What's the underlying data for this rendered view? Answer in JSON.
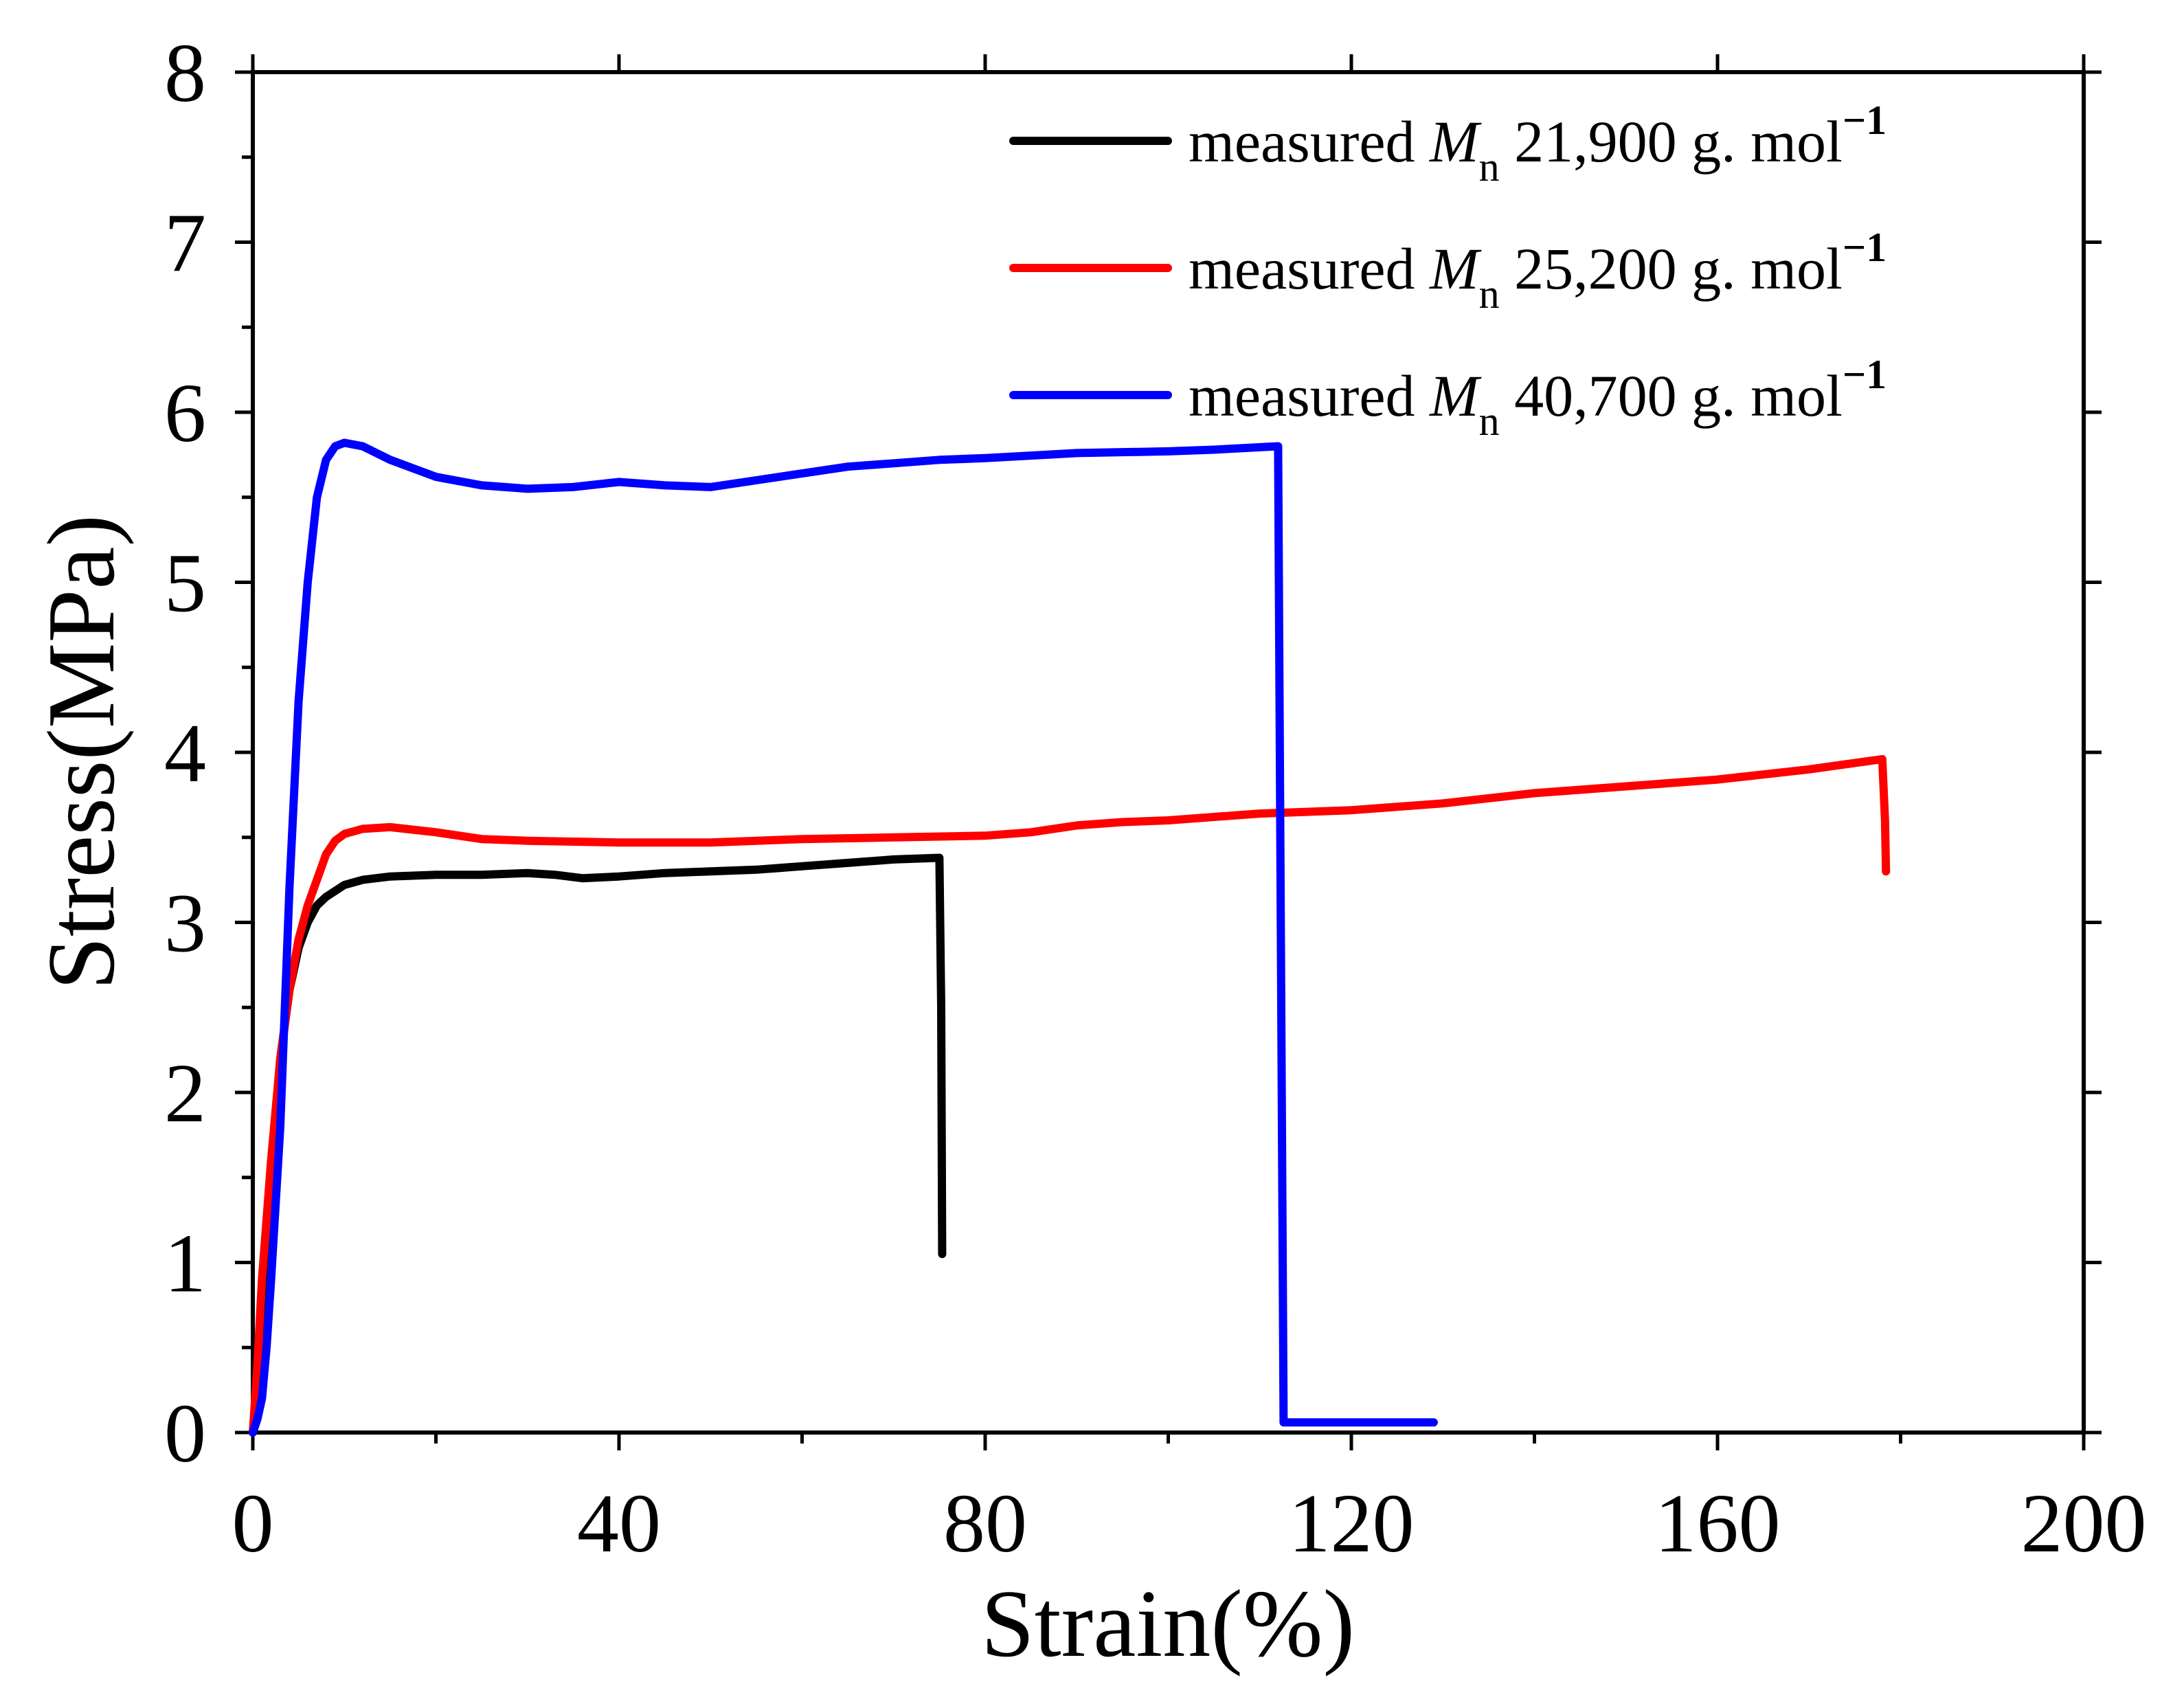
{
  "chart_data": {
    "type": "line",
    "title": "",
    "xlabel": "Strain(%)",
    "ylabel": "Stress(MPa)",
    "xlim": [
      0,
      200
    ],
    "ylim": [
      0,
      8
    ],
    "xticks": [
      0,
      40,
      80,
      120,
      160,
      200
    ],
    "yticks": [
      0,
      1,
      2,
      3,
      4,
      5,
      6,
      7,
      8
    ],
    "xtick_labels": [
      "0",
      "40",
      "80",
      "120",
      "160",
      "200"
    ],
    "ytick_labels": [
      "0",
      "1",
      "2",
      "3",
      "4",
      "5",
      "6",
      "7",
      "8"
    ],
    "grid": false,
    "legend_position": "top-right",
    "series": [
      {
        "name": "measured Mn 21,900 g. mol-1",
        "legend_prefix": "measured",
        "legend_symbol": "M",
        "legend_subscript": "n",
        "legend_value": "21,900 g. mol",
        "legend_superscript": "−1",
        "color": "#000000",
        "points": [
          [
            0,
            0
          ],
          [
            0.5,
            0.3
          ],
          [
            1,
            0.8
          ],
          [
            2,
            1.5
          ],
          [
            3,
            2.2
          ],
          [
            4,
            2.6
          ],
          [
            5,
            2.85
          ],
          [
            6,
            3.0
          ],
          [
            7,
            3.1
          ],
          [
            8,
            3.15
          ],
          [
            10,
            3.22
          ],
          [
            12,
            3.25
          ],
          [
            15,
            3.27
          ],
          [
            20,
            3.28
          ],
          [
            25,
            3.28
          ],
          [
            30,
            3.29
          ],
          [
            33,
            3.28
          ],
          [
            36,
            3.26
          ],
          [
            40,
            3.27
          ],
          [
            45,
            3.29
          ],
          [
            50,
            3.3
          ],
          [
            55,
            3.31
          ],
          [
            60,
            3.33
          ],
          [
            65,
            3.35
          ],
          [
            70,
            3.37
          ],
          [
            75,
            3.38
          ],
          [
            75.2,
            2.5
          ],
          [
            75.3,
            1.05
          ]
        ]
      },
      {
        "name": "measured Mn 25,200 g. mol-1",
        "legend_prefix": "measured",
        "legend_symbol": "M",
        "legend_subscript": "n",
        "legend_value": "25,200 g. mol",
        "legend_superscript": "−1",
        "color": "#ff0000",
        "points": [
          [
            0,
            0
          ],
          [
            0.5,
            0.4
          ],
          [
            1,
            0.9
          ],
          [
            2,
            1.6
          ],
          [
            3,
            2.2
          ],
          [
            4,
            2.6
          ],
          [
            5,
            2.9
          ],
          [
            6,
            3.1
          ],
          [
            7,
            3.25
          ],
          [
            8,
            3.4
          ],
          [
            9,
            3.48
          ],
          [
            10,
            3.52
          ],
          [
            12,
            3.55
          ],
          [
            15,
            3.56
          ],
          [
            20,
            3.53
          ],
          [
            25,
            3.49
          ],
          [
            30,
            3.48
          ],
          [
            40,
            3.47
          ],
          [
            50,
            3.47
          ],
          [
            60,
            3.49
          ],
          [
            70,
            3.5
          ],
          [
            80,
            3.51
          ],
          [
            85,
            3.53
          ],
          [
            90,
            3.57
          ],
          [
            95,
            3.59
          ],
          [
            100,
            3.6
          ],
          [
            110,
            3.64
          ],
          [
            120,
            3.66
          ],
          [
            130,
            3.7
          ],
          [
            140,
            3.76
          ],
          [
            150,
            3.8
          ],
          [
            160,
            3.84
          ],
          [
            170,
            3.9
          ],
          [
            178,
            3.96
          ],
          [
            178.3,
            3.6
          ],
          [
            178.4,
            3.3
          ]
        ]
      },
      {
        "name": "measured Mn 40,700 g. mol-1",
        "legend_prefix": "measured",
        "legend_symbol": "M",
        "legend_subscript": "n",
        "legend_value": "40,700 g. mol",
        "legend_superscript": "−1",
        "color": "#0000ff",
        "points": [
          [
            0,
            0
          ],
          [
            0.5,
            0.08
          ],
          [
            1,
            0.2
          ],
          [
            1.5,
            0.5
          ],
          [
            2,
            0.9
          ],
          [
            3,
            1.8
          ],
          [
            4,
            3.2
          ],
          [
            5,
            4.3
          ],
          [
            6,
            5.0
          ],
          [
            7,
            5.5
          ],
          [
            8,
            5.72
          ],
          [
            9,
            5.8
          ],
          [
            10,
            5.82
          ],
          [
            12,
            5.8
          ],
          [
            15,
            5.72
          ],
          [
            20,
            5.62
          ],
          [
            25,
            5.57
          ],
          [
            30,
            5.55
          ],
          [
            35,
            5.56
          ],
          [
            40,
            5.59
          ],
          [
            45,
            5.57
          ],
          [
            50,
            5.56
          ],
          [
            55,
            5.6
          ],
          [
            60,
            5.64
          ],
          [
            65,
            5.68
          ],
          [
            70,
            5.7
          ],
          [
            75,
            5.72
          ],
          [
            80,
            5.73
          ],
          [
            90,
            5.76
          ],
          [
            100,
            5.77
          ],
          [
            105,
            5.78
          ],
          [
            112,
            5.8
          ],
          [
            112.6,
            0.06
          ],
          [
            120,
            0.06
          ],
          [
            129,
            0.06
          ]
        ]
      }
    ]
  }
}
